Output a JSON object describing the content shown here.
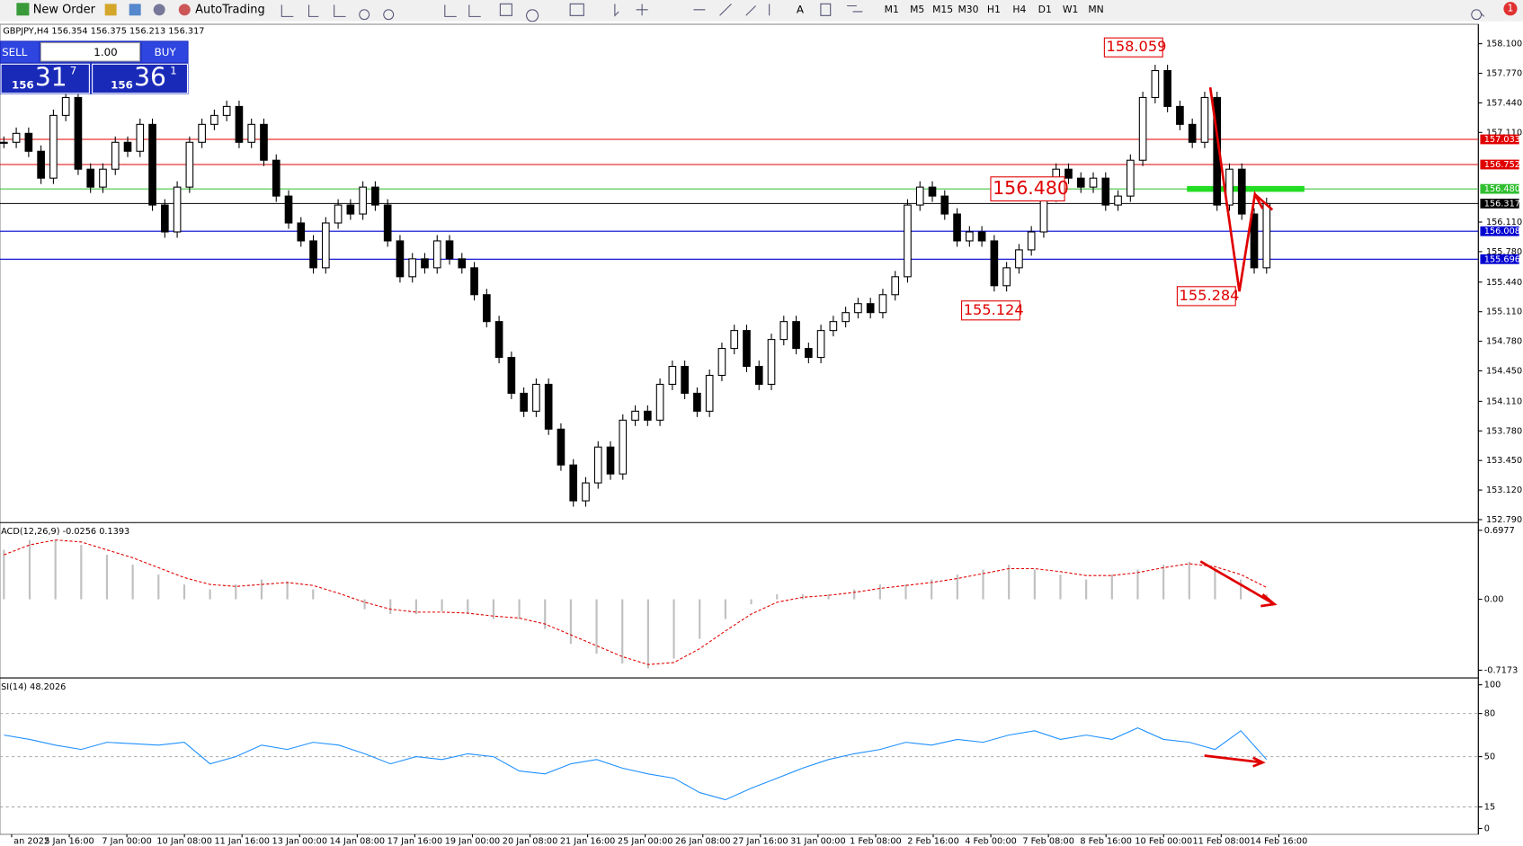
{
  "toolbar": {
    "new_order": "New Order",
    "auto_trading": "AutoTrading",
    "timeframes": [
      "M1",
      "M5",
      "M15",
      "M30",
      "H1",
      "H4",
      "D1",
      "W1",
      "MN"
    ],
    "alerts": "1"
  },
  "trade_panel": {
    "sell": "SELL",
    "buy": "BUY",
    "lot": "1.00",
    "sell_price": {
      "big": "156",
      "pips": "31",
      "frac": "7"
    },
    "buy_price": {
      "big": "156",
      "pips": "36",
      "frac": "1"
    }
  },
  "chart_data": [
    {
      "type": "candlestick",
      "title": "GBPJPY,H4 156.354 156.375 156.213 156.317",
      "close": [
        157.0,
        157.1,
        156.9,
        156.6,
        157.3,
        157.5,
        156.7,
        156.5,
        156.7,
        157.0,
        156.9,
        157.2,
        156.3,
        156.0,
        156.5,
        157.0,
        157.2,
        157.3,
        157.4,
        157.0,
        157.2,
        156.8,
        156.4,
        156.1,
        155.9,
        155.6,
        156.1,
        156.3,
        156.2,
        156.5,
        156.3,
        155.9,
        155.5,
        155.7,
        155.6,
        155.9,
        155.7,
        155.6,
        155.3,
        155.0,
        154.6,
        154.2,
        154.0,
        154.3,
        153.8,
        153.4,
        153.0,
        153.2,
        153.6,
        153.3,
        153.9,
        154.0,
        153.9,
        154.3,
        154.5,
        154.2,
        154.0,
        154.4,
        154.7,
        154.9,
        154.5,
        154.3,
        154.8,
        155.0,
        154.7,
        154.6,
        154.9,
        155.0,
        155.1,
        155.2,
        155.1,
        155.3,
        155.5,
        156.3,
        156.5,
        156.4,
        156.2,
        155.9,
        156.0,
        155.9,
        155.4,
        155.6,
        155.8,
        156.0,
        156.4,
        156.7,
        156.6,
        156.5,
        156.6,
        156.3,
        156.4,
        156.8,
        157.5,
        157.8,
        157.4,
        157.2,
        157.0,
        157.5,
        156.3,
        156.7,
        156.2,
        155.6,
        156.317
      ],
      "ylim": [
        152.79,
        158.1
      ],
      "yticks": [
        {
          "value": 158.1,
          "label": "158.100"
        },
        {
          "value": 157.77,
          "label": "157.770"
        },
        {
          "value": 157.44,
          "label": "157.440"
        },
        {
          "value": 157.11,
          "label": "157.110"
        },
        {
          "value": 156.11,
          "label": "156.110"
        },
        {
          "value": 155.78,
          "label": "155.780"
        },
        {
          "value": 155.44,
          "label": "155.440"
        },
        {
          "value": 155.11,
          "label": "155.110"
        },
        {
          "value": 154.78,
          "label": "154.780"
        },
        {
          "value": 154.45,
          "label": "154.450"
        },
        {
          "value": 154.11,
          "label": "154.110"
        },
        {
          "value": 153.78,
          "label": "153.780"
        },
        {
          "value": 153.45,
          "label": "153.450"
        },
        {
          "value": 153.12,
          "label": "153.120"
        },
        {
          "value": 152.79,
          "label": "152.790"
        }
      ],
      "levels": [
        {
          "value": 157.033,
          "label": "157.033",
          "color": "#e00000"
        },
        {
          "value": 156.752,
          "label": "156.752",
          "color": "#e00000"
        },
        {
          "value": 156.48,
          "label": "156.480",
          "color": "#2fbf2f"
        },
        {
          "value": 156.317,
          "label": "156.317",
          "color": "#000000"
        },
        {
          "value": 156.008,
          "label": "156.008",
          "color": "#0000d0"
        },
        {
          "value": 155.696,
          "label": "155.696",
          "color": "#0000d0"
        }
      ],
      "annotations": [
        {
          "value": 158.059,
          "label": "158.059"
        },
        {
          "value": 156.48,
          "label": "156.480"
        },
        {
          "value": 155.124,
          "label": "155.124"
        },
        {
          "value": 155.284,
          "label": "155.284"
        }
      ],
      "time_labels": [
        "an 2022",
        "5 Jan 16:00",
        "7 Jan 00:00",
        "10 Jan 08:00",
        "11 Jan 16:00",
        "13 Jan 00:00",
        "14 Jan 08:00",
        "17 Jan 16:00",
        "19 Jan 00:00",
        "20 Jan 08:00",
        "21 Jan 16:00",
        "25 Jan 00:00",
        "26 Jan 08:00",
        "27 Jan 16:00",
        "31 Jan 00:00",
        "1 Feb 08:00",
        "2 Feb 16:00",
        "4 Feb 00:00",
        "7 Feb 08:00",
        "8 Feb 16:00",
        "10 Feb 00:00",
        "11 Feb 08:00",
        "14 Feb 16:00"
      ]
    },
    {
      "type": "histogram",
      "title": "ACD(12,26,9) -0.0256 0.1393",
      "values": [
        0.5,
        0.6,
        0.6,
        0.55,
        0.45,
        0.35,
        0.25,
        0.15,
        0.1,
        0.15,
        0.2,
        0.18,
        0.1,
        0,
        -0.1,
        -0.15,
        -0.15,
        -0.12,
        -0.15,
        -0.2,
        -0.2,
        -0.3,
        -0.45,
        -0.55,
        -0.65,
        -0.7,
        -0.6,
        -0.4,
        -0.2,
        -0.05,
        0.05,
        0.05,
        0.05,
        0.1,
        0.15,
        0.15,
        0.2,
        0.25,
        0.3,
        0.35,
        0.3,
        0.25,
        0.2,
        0.25,
        0.3,
        0.35,
        0.38,
        0.3,
        0.2,
        0.05
      ],
      "signal": [
        0.45,
        0.55,
        0.6,
        0.58,
        0.5,
        0.42,
        0.32,
        0.22,
        0.15,
        0.13,
        0.15,
        0.17,
        0.14,
        0.06,
        -0.03,
        -0.1,
        -0.13,
        -0.13,
        -0.14,
        -0.17,
        -0.19,
        -0.25,
        -0.36,
        -0.47,
        -0.58,
        -0.66,
        -0.64,
        -0.5,
        -0.32,
        -0.15,
        -0.03,
        0.02,
        0.04,
        0.07,
        0.11,
        0.14,
        0.17,
        0.21,
        0.26,
        0.31,
        0.31,
        0.28,
        0.24,
        0.24,
        0.27,
        0.32,
        0.36,
        0.33,
        0.25,
        0.12
      ],
      "series_color": "#c0c0c0",
      "signal_color": "#e00000",
      "ylim": [
        -0.7173,
        0.6977
      ],
      "yticks": [
        0.6977,
        {
          "value": 0,
          "label": "0.00"
        },
        -0.7173
      ]
    },
    {
      "type": "line",
      "title": "SI(14) 48.2026",
      "values": [
        65,
        62,
        58,
        55,
        60,
        59,
        58,
        60,
        45,
        50,
        58,
        55,
        60,
        58,
        52,
        45,
        50,
        48,
        52,
        50,
        40,
        38,
        45,
        48,
        42,
        38,
        35,
        25,
        20,
        28,
        35,
        42,
        48,
        52,
        55,
        60,
        58,
        62,
        60,
        65,
        68,
        62,
        65,
        62,
        70,
        62,
        60,
        55,
        68,
        48
      ],
      "color": "#1e90ff",
      "ylim": [
        0,
        100
      ],
      "yticks": [
        0,
        15,
        50,
        80,
        100
      ]
    }
  ]
}
